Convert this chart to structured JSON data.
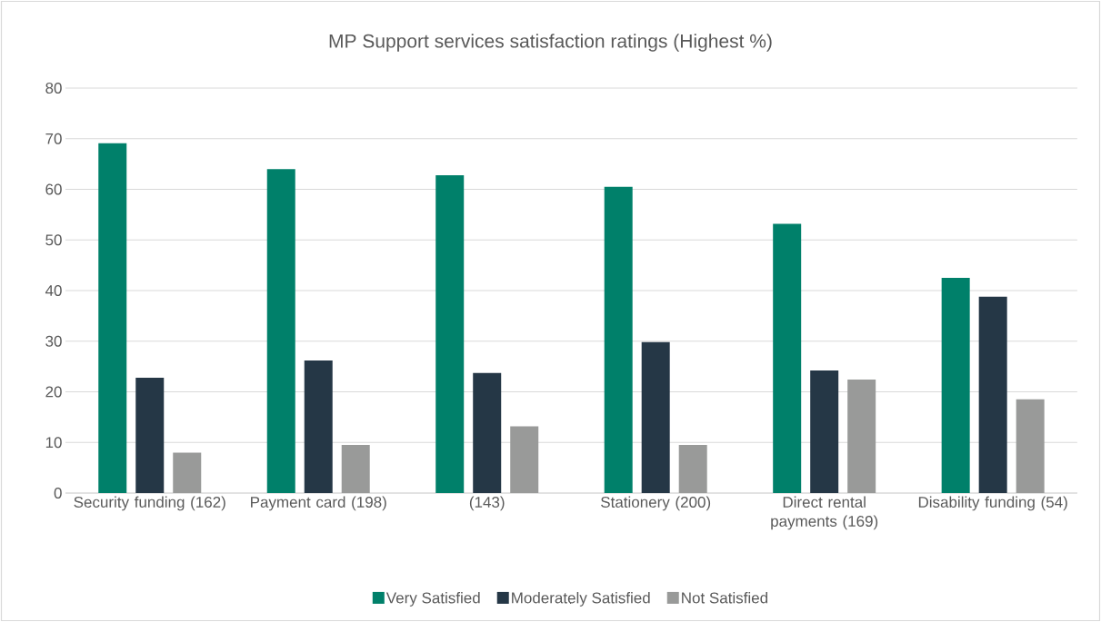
{
  "chart_data": {
    "type": "bar",
    "title": "MP Support services satisfaction ratings (Highest %)",
    "categories": [
      "Security funding (162)",
      "Payment card (198)",
      "(143)",
      "Stationery (200)",
      "Direct rental payments (169)",
      "Disability funding (54)"
    ],
    "series": [
      {
        "name": "Very Satisfied",
        "color": "#00806a",
        "values": [
          69.1,
          64.0,
          62.8,
          60.5,
          53.2,
          42.5
        ]
      },
      {
        "name": "Moderately Satisfied",
        "color": "#253746",
        "values": [
          22.8,
          26.2,
          23.7,
          29.8,
          24.2,
          38.8
        ]
      },
      {
        "name": "Not Satisfied",
        "color": "#999a99",
        "values": [
          8.0,
          9.5,
          13.2,
          9.5,
          22.4,
          18.5
        ]
      }
    ],
    "ylim": [
      0,
      80
    ],
    "yticks": [
      0,
      10,
      20,
      30,
      40,
      50,
      60,
      70,
      80
    ],
    "grid": "y",
    "legend": "bottom"
  }
}
